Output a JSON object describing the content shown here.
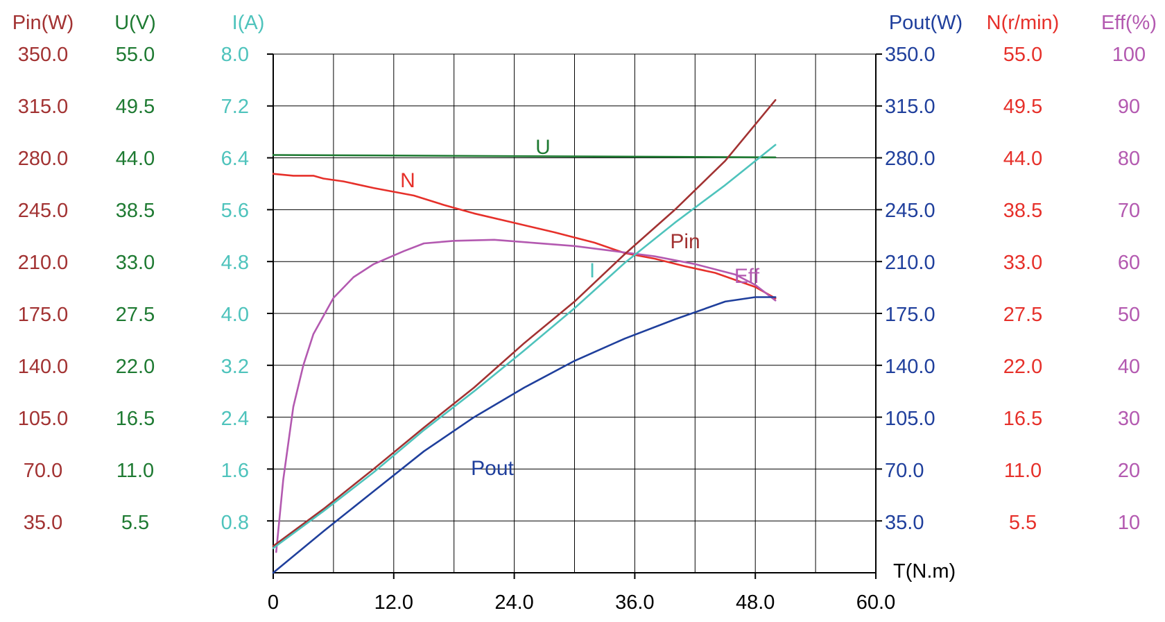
{
  "chart_data": {
    "type": "line",
    "title": "",
    "grid": true,
    "colors": {
      "pin": "#a23232",
      "u": "#1e7a32",
      "i": "#4ec3bc",
      "pout": "#1f3f9c",
      "n": "#e6302a",
      "eff": "#b359b0",
      "axis": "#000000",
      "grid": "#000000"
    },
    "x_axis": {
      "label": "T(N.m)",
      "range": [
        0,
        60
      ],
      "ticks": [
        "0",
        "12.0",
        "24.0",
        "36.0",
        "48.0",
        "60.0"
      ],
      "gridlines": [
        0,
        6,
        12,
        18,
        24,
        30,
        36,
        42,
        48,
        54,
        60
      ]
    },
    "y_axes": [
      {
        "key": "pin",
        "label": "Pin(W)",
        "side": "left",
        "range": [
          0,
          350
        ],
        "ticks": [
          "350.0",
          "315.0",
          "280.0",
          "245.0",
          "210.0",
          "175.0",
          "140.0",
          "105.0",
          "70.0",
          "35.0"
        ]
      },
      {
        "key": "u",
        "label": "U(V)",
        "side": "left",
        "range": [
          0,
          55
        ],
        "ticks": [
          "55.0",
          "49.5",
          "44.0",
          "38.5",
          "33.0",
          "27.5",
          "22.0",
          "16.5",
          "11.0",
          "5.5"
        ]
      },
      {
        "key": "i",
        "label": "I(A)",
        "side": "left",
        "range": [
          0,
          8
        ],
        "ticks": [
          "8.0",
          "7.2",
          "6.4",
          "5.6",
          "4.8",
          "4.0",
          "3.2",
          "2.4",
          "1.6",
          "0.8"
        ]
      },
      {
        "key": "pout",
        "label": "Pout(W)",
        "side": "right",
        "range": [
          0,
          350
        ],
        "ticks": [
          "350.0",
          "315.0",
          "280.0",
          "245.0",
          "210.0",
          "175.0",
          "140.0",
          "105.0",
          "70.0",
          "35.0"
        ]
      },
      {
        "key": "n",
        "label": "N(r/min)",
        "side": "right",
        "range": [
          0,
          55
        ],
        "ticks": [
          "55.0",
          "49.5",
          "44.0",
          "38.5",
          "33.0",
          "27.5",
          "22.0",
          "16.5",
          "11.0",
          "5.5"
        ]
      },
      {
        "key": "eff",
        "label": "Eff(%)",
        "side": "right",
        "range": [
          0,
          100
        ],
        "ticks": [
          "100",
          "90",
          "80",
          "70",
          "60",
          "50",
          "40",
          "30",
          "20",
          "10"
        ]
      }
    ],
    "series": [
      {
        "name": "U",
        "axis": "u",
        "x": [
          0,
          10,
          20,
          30,
          40,
          50
        ],
        "y": [
          44.3,
          44.25,
          44.2,
          44.15,
          44.1,
          44.05
        ]
      },
      {
        "name": "N",
        "axis": "n",
        "x": [
          0,
          1,
          2,
          3,
          4,
          5,
          7,
          10,
          14,
          17,
          20,
          24,
          28,
          32,
          35,
          38,
          41,
          44,
          48,
          50
        ],
        "y": [
          42.3,
          42.2,
          42.1,
          42.1,
          42.1,
          41.8,
          41.5,
          40.8,
          40.0,
          39.0,
          38.1,
          37.1,
          36.1,
          35.0,
          33.9,
          33.3,
          32.5,
          31.8,
          30.3,
          29.1
        ]
      },
      {
        "name": "Eff",
        "axis": "eff",
        "x": [
          0.3,
          1,
          2,
          3,
          4,
          6,
          8,
          10,
          13,
          15,
          18,
          22,
          26,
          30,
          34,
          38,
          42,
          46,
          48,
          50
        ],
        "y": [
          4,
          18,
          32,
          40,
          46,
          53,
          57,
          59.5,
          62,
          63.5,
          64,
          64.2,
          63.6,
          63,
          62,
          61,
          59.5,
          57.5,
          55.5,
          52.5
        ]
      },
      {
        "name": "Pin",
        "axis": "pin",
        "x": [
          0,
          5,
          10,
          15,
          20,
          25,
          30,
          35,
          40,
          45,
          50
        ],
        "y": [
          18,
          43,
          70,
          98,
          125,
          155,
          183,
          215,
          245,
          278,
          319
        ]
      },
      {
        "name": "I",
        "axis": "i",
        "x": [
          0,
          5,
          10,
          15,
          20,
          25,
          30,
          35,
          40,
          45,
          50
        ],
        "y": [
          0.38,
          0.95,
          1.55,
          2.2,
          2.8,
          3.43,
          4.08,
          4.78,
          5.4,
          5.98,
          6.6
        ]
      },
      {
        "name": "Pout",
        "axis": "pout",
        "x": [
          0,
          5,
          10,
          15,
          20,
          25,
          30,
          35,
          40,
          45,
          48,
          50
        ],
        "y": [
          0,
          28,
          55,
          82,
          105,
          125,
          143,
          158,
          171,
          183,
          186,
          186
        ]
      }
    ],
    "annotations": [
      {
        "text": "U",
        "color_key": "u"
      },
      {
        "text": "N",
        "color_key": "n"
      },
      {
        "text": "Pin",
        "color_key": "pin"
      },
      {
        "text": "Eff",
        "color_key": "eff"
      },
      {
        "text": "I",
        "color_key": "i"
      },
      {
        "text": "Pout",
        "color_key": "pout"
      }
    ]
  }
}
